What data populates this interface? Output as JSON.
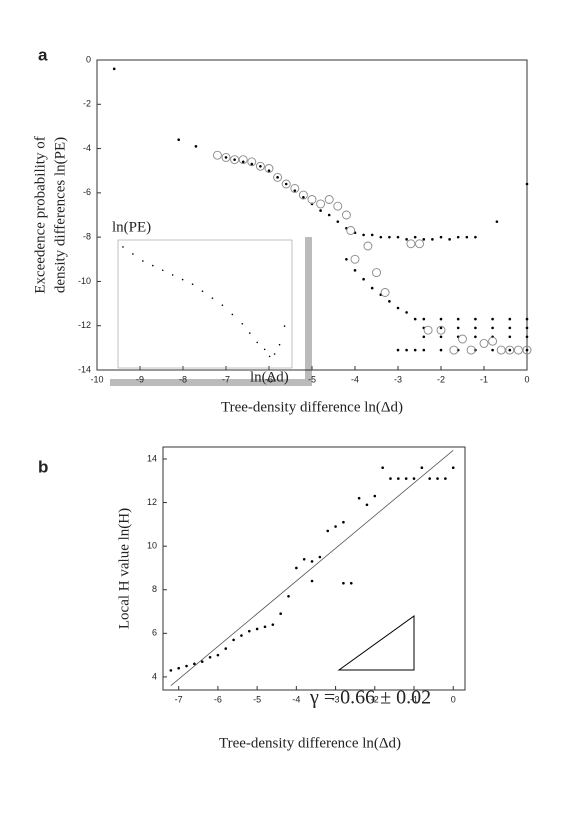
{
  "chart_data": [
    {
      "type": "scatter",
      "panel_label": "a",
      "xlabel": "Tree-density difference ln(Δd)",
      "ylabel_lines": [
        "Exceedence probability of",
        "density differences ln(PE)"
      ],
      "xlim": [
        -10,
        0
      ],
      "ylim": [
        -14,
        0
      ],
      "xticks": [
        -10,
        -9,
        -8,
        -7,
        -6,
        -5,
        -4,
        -3,
        -2,
        -1,
        0
      ],
      "yticks": [
        -14,
        -12,
        -10,
        -8,
        -6,
        -4,
        -2,
        0
      ],
      "series": [
        {
          "marker": "dot",
          "color": "#000000",
          "x": [
            -9.6,
            -8.1,
            -7.7,
            -7.0,
            -6.8,
            -6.6,
            -6.4,
            -6.2,
            -6.0,
            -5.8,
            -5.6,
            -5.4,
            -5.2,
            -5.0,
            -4.8,
            -4.6,
            -4.4,
            -4.2,
            -4.0,
            -3.8,
            -3.6,
            -3.4,
            -3.2,
            -3.0,
            -2.8,
            -2.6,
            -2.4,
            -2.2,
            -2.0,
            -1.8,
            -1.6,
            -1.4,
            -1.2,
            -0.7,
            0,
            -4.2,
            -4.0,
            -3.8,
            -3.6,
            -3.4,
            -3.2,
            -3.0,
            -2.8,
            -2.6,
            -2.4,
            -2.0,
            -1.6,
            -1.2,
            -0.8,
            -0.4,
            0,
            -2.4,
            -2.0,
            -1.6,
            -1.2,
            -0.8,
            -0.4,
            0,
            -2.4,
            -2.0,
            -1.6,
            -1.2,
            -0.8,
            -0.4,
            0,
            -3.0,
            -2.8,
            -2.6,
            -2.4,
            -2.0,
            -1.6,
            -1.2,
            -0.8,
            -0.4,
            0
          ],
          "values": [
            -0.4,
            -3.6,
            -3.9,
            -4.4,
            -4.5,
            -4.6,
            -4.7,
            -4.8,
            -5.0,
            -5.3,
            -5.6,
            -5.9,
            -6.2,
            -6.5,
            -6.8,
            -7.0,
            -7.3,
            -7.6,
            -7.8,
            -7.9,
            -7.9,
            -8.0,
            -8.0,
            -8.0,
            -8.1,
            -8.0,
            -8.1,
            -8.1,
            -8.0,
            -8.1,
            -8.0,
            -8.0,
            -8.0,
            -7.3,
            -5.6,
            -9.0,
            -9.5,
            -9.9,
            -10.3,
            -10.6,
            -10.9,
            -11.2,
            -11.4,
            -11.7,
            -11.7,
            -11.7,
            -11.7,
            -11.7,
            -11.7,
            -11.7,
            -11.7,
            -12.1,
            -12.1,
            -12.1,
            -12.1,
            -12.1,
            -12.1,
            -12.1,
            -12.5,
            -12.5,
            -12.5,
            -12.5,
            -12.5,
            -12.5,
            -12.5,
            -13.1,
            -13.1,
            -13.1,
            -13.1,
            -13.1,
            -13.1,
            -13.1,
            -13.1,
            -13.1,
            -13.1
          ]
        },
        {
          "marker": "circle",
          "color": "#888888",
          "x": [
            -7.2,
            -7.0,
            -6.8,
            -6.6,
            -6.4,
            -6.2,
            -6.0,
            -5.8,
            -5.6,
            -5.4,
            -5.2,
            -5.0,
            -4.8,
            -4.6,
            -4.4,
            -4.2,
            -4.1,
            -3.7,
            -4.0,
            -3.5,
            -3.3,
            -2.7,
            -2.5,
            -2.3,
            -2.0,
            -1.7,
            -1.5,
            -1.3,
            -1.0,
            -0.8,
            -0.6,
            -0.4,
            -0.2,
            0
          ],
          "values": [
            -4.3,
            -4.4,
            -4.5,
            -4.5,
            -4.6,
            -4.8,
            -4.9,
            -5.3,
            -5.6,
            -5.8,
            -6.1,
            -6.3,
            -6.5,
            -6.3,
            -6.6,
            -7.0,
            -7.7,
            -8.4,
            -9.0,
            -9.6,
            -10.5,
            -8.3,
            -8.3,
            -12.2,
            -12.2,
            -13.1,
            -12.6,
            -13.1,
            -12.8,
            -12.7,
            -13.1,
            -13.1,
            -13.1,
            -13.1
          ]
        }
      ]
    },
    {
      "type": "scatter",
      "inset": true,
      "ylabel": "ln(PE)",
      "xlabel": "ln(Δd)",
      "xlim": [
        0,
        7
      ],
      "ylim": [
        -8,
        -2.5
      ],
      "series": [
        {
          "marker": "dot",
          "color": "#000000",
          "x": [
            0.2,
            0.6,
            1.0,
            1.4,
            1.8,
            2.2,
            2.6,
            3.0,
            3.4,
            3.8,
            4.2,
            4.6,
            5.0,
            5.3,
            5.6,
            5.9,
            6.1,
            6.3,
            6.5,
            6.7
          ],
          "values": [
            -2.8,
            -3.1,
            -3.4,
            -3.6,
            -3.8,
            -4.0,
            -4.2,
            -4.4,
            -4.7,
            -5.0,
            -5.3,
            -5.7,
            -6.1,
            -6.5,
            -6.9,
            -7.2,
            -7.5,
            -7.4,
            -7.0,
            -6.2
          ]
        }
      ]
    },
    {
      "type": "scatter",
      "panel_label": "b",
      "xlabel": "Tree-density difference ln(Δd)",
      "ylabel": "Local H value ln(H)",
      "annotation": "γ = 0.66 ± 0.02",
      "xlim": [
        -7.4,
        0.3
      ],
      "ylim": [
        3.4,
        14.55
      ],
      "xticks": [
        -7,
        -6,
        -5,
        -4,
        -3,
        -2,
        -1,
        0
      ],
      "yticks": [
        4,
        6,
        8,
        10,
        12,
        14
      ],
      "fit": {
        "x": [
          -7.2,
          0
        ],
        "values": [
          3.6,
          14.4
        ],
        "color": "#555555"
      },
      "series": [
        {
          "marker": "dot",
          "color": "#000000",
          "x": [
            -7.2,
            -7.0,
            -6.8,
            -6.6,
            -6.4,
            -6.2,
            -6.0,
            -5.8,
            -5.6,
            -5.4,
            -5.2,
            -5.0,
            -4.8,
            -4.6,
            -4.4,
            -4.2,
            -4.0,
            -3.8,
            -3.6,
            -3.4,
            -3.6,
            -3.2,
            -3.0,
            -2.8,
            -2.6,
            -2.8,
            -2.4,
            -2.2,
            -2.0,
            -1.8,
            -1.6,
            -1.4,
            -1.2,
            -1.0,
            -0.8,
            -0.6,
            -0.4,
            -0.2,
            0
          ],
          "values": [
            4.3,
            4.4,
            4.5,
            4.6,
            4.7,
            4.9,
            5.0,
            5.3,
            5.7,
            5.9,
            6.1,
            6.2,
            6.3,
            6.4,
            6.9,
            7.7,
            9.0,
            9.4,
            9.3,
            9.5,
            8.4,
            10.7,
            10.9,
            11.1,
            8.3,
            8.3,
            12.2,
            11.9,
            12.3,
            13.6,
            13.1,
            13.1,
            13.1,
            13.1,
            13.6,
            13.1,
            13.1,
            13.1,
            13.6
          ]
        }
      ]
    }
  ]
}
